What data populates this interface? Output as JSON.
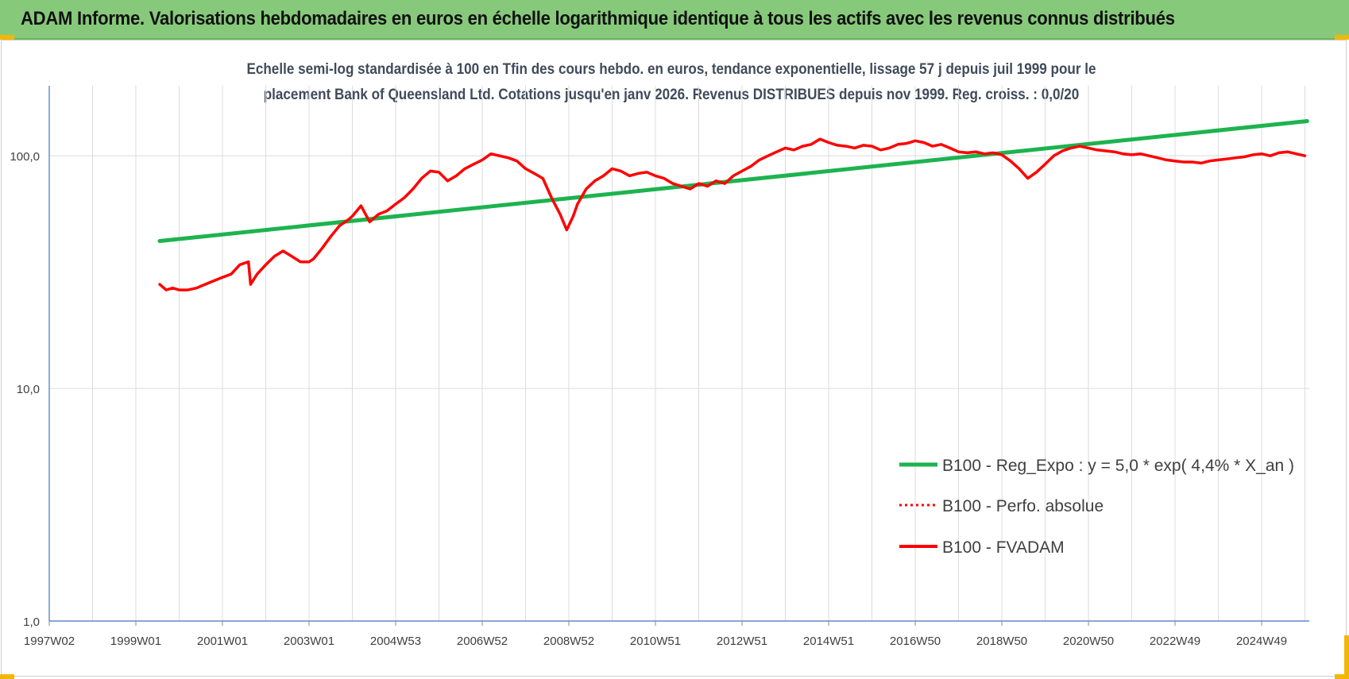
{
  "banner": {
    "title": "ADAM Informe. Valorisations hebdomadaires en euros en échelle logarithmique identique à tous les actifs avec les revenus connus distribués",
    "color": "#86c97a"
  },
  "chart_data": {
    "type": "line",
    "title_lines": [
      "Echelle semi-log standardisée à 100 en Tfin des cours hebdo. en euros, tendance exponentielle, lissage 57 j depuis juil 1999 pour le",
      "placement Bank of Queensland Ltd. Cotations jusqu'en janv 2026. Revenus DISTRIBUES depuis nov 1999. Reg. croiss. : 0,0/20"
    ],
    "y_scale": "log",
    "ylim": [
      1,
      180
    ],
    "y_ticks": [
      {
        "value": 1,
        "label": "1,0"
      },
      {
        "value": 10,
        "label": "10,0"
      },
      {
        "value": 100,
        "label": "100,0"
      }
    ],
    "xlim": [
      1997.0,
      2026.1
    ],
    "x_ticks": [
      {
        "value": 1997.0,
        "label": "1997W02"
      },
      {
        "value": 1999.0,
        "label": "1999W01"
      },
      {
        "value": 2001.0,
        "label": "2001W01"
      },
      {
        "value": 2003.0,
        "label": "2003W01"
      },
      {
        "value": 2005.0,
        "label": "2004W53"
      },
      {
        "value": 2007.0,
        "label": "2006W52"
      },
      {
        "value": 2009.0,
        "label": "2008W52"
      },
      {
        "value": 2011.0,
        "label": "2010W51"
      },
      {
        "value": 2013.0,
        "label": "2012W51"
      },
      {
        "value": 2015.0,
        "label": "2014W51"
      },
      {
        "value": 2017.0,
        "label": "2016W50"
      },
      {
        "value": 2019.0,
        "label": "2018W50"
      },
      {
        "value": 2021.0,
        "label": "2020W50"
      },
      {
        "value": 2023.0,
        "label": "2022W49"
      },
      {
        "value": 2025.0,
        "label": "2024W49"
      }
    ],
    "grid": "vertical",
    "legend_position": "bottom-right",
    "series": [
      {
        "name": "B100 - Reg_Expo : y = 5,0 * exp( 4,4% *  X_an )",
        "color": "#1db34f",
        "style": "solid",
        "x": [
          1999.55,
          2026.05
        ],
        "values": [
          43,
          141
        ]
      },
      {
        "name": "B100 - Perfo. absolue",
        "color": "#ff0000",
        "style": "dotted",
        "x": [],
        "values": []
      },
      {
        "name": "B100 - FVADAM",
        "color": "#ff0000",
        "style": "solid",
        "x": [
          1999.55,
          1999.7,
          1999.85,
          2000.0,
          2000.2,
          2000.4,
          2000.6,
          2000.8,
          2001.0,
          2001.2,
          2001.4,
          2001.6,
          2001.65,
          2001.8,
          2002.0,
          2002.2,
          2002.4,
          2002.6,
          2002.8,
          2003.0,
          2003.1,
          2003.3,
          2003.5,
          2003.7,
          2003.9,
          2004.0,
          2004.2,
          2004.4,
          2004.6,
          2004.8,
          2005.0,
          2005.2,
          2005.4,
          2005.6,
          2005.8,
          2006.0,
          2006.2,
          2006.4,
          2006.6,
          2006.8,
          2007.0,
          2007.2,
          2007.4,
          2007.6,
          2007.8,
          2008.0,
          2008.2,
          2008.4,
          2008.6,
          2008.8,
          2008.95,
          2009.1,
          2009.2,
          2009.4,
          2009.6,
          2009.8,
          2010.0,
          2010.2,
          2010.4,
          2010.6,
          2010.8,
          2011.0,
          2011.2,
          2011.4,
          2011.6,
          2011.8,
          2012.0,
          2012.2,
          2012.4,
          2012.6,
          2012.8,
          2013.0,
          2013.2,
          2013.4,
          2013.6,
          2013.8,
          2014.0,
          2014.2,
          2014.4,
          2014.6,
          2014.8,
          2015.0,
          2015.2,
          2015.4,
          2015.6,
          2015.8,
          2016.0,
          2016.2,
          2016.4,
          2016.6,
          2016.8,
          2017.0,
          2017.2,
          2017.4,
          2017.6,
          2017.8,
          2018.0,
          2018.2,
          2018.4,
          2018.6,
          2018.8,
          2019.0,
          2019.2,
          2019.4,
          2019.6,
          2019.8,
          2020.0,
          2020.2,
          2020.4,
          2020.6,
          2020.8,
          2021.0,
          2021.2,
          2021.4,
          2021.6,
          2021.8,
          2022.0,
          2022.2,
          2022.4,
          2022.6,
          2022.8,
          2023.0,
          2023.2,
          2023.4,
          2023.6,
          2023.8,
          2024.0,
          2024.2,
          2024.4,
          2024.6,
          2024.8,
          2025.0,
          2025.2,
          2025.4,
          2025.6,
          2025.8,
          2026.0
        ],
        "values": [
          28,
          26.5,
          27,
          26.5,
          26.5,
          27,
          28,
          29,
          30,
          31,
          34,
          35,
          28,
          31,
          34,
          37,
          39,
          37,
          35,
          35,
          36,
          40,
          45,
          50,
          53,
          55,
          61,
          52,
          56,
          58,
          62,
          66,
          72,
          80,
          86,
          85,
          78,
          82,
          88,
          92,
          96,
          102,
          100,
          98,
          95,
          88,
          84,
          80,
          66,
          56,
          48,
          55,
          62,
          72,
          78,
          82,
          88,
          86,
          82,
          84,
          85,
          82,
          80,
          76,
          74,
          72,
          76,
          74,
          78,
          76,
          82,
          86,
          90,
          96,
          100,
          104,
          108,
          106,
          110,
          112,
          118,
          114,
          111,
          110,
          108,
          111,
          110,
          106,
          108,
          112,
          113,
          116,
          114,
          110,
          112,
          108,
          104,
          103,
          104,
          102,
          103,
          101,
          95,
          88,
          80,
          85,
          92,
          100,
          105,
          108,
          110,
          108,
          106,
          105,
          104,
          102,
          101,
          102,
          100,
          98,
          96,
          95,
          94,
          94,
          93,
          95,
          96,
          97,
          98,
          99,
          101,
          102,
          100,
          103,
          104,
          102,
          100
        ]
      }
    ]
  }
}
